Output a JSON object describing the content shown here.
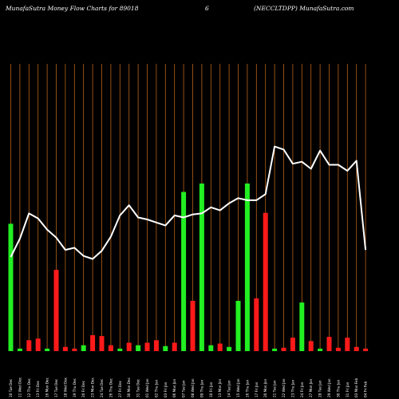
{
  "header": {
    "left": "MunafaSutra  Money Flow  Charts for 89018",
    "middle": "6",
    "right": "(NECCLTDPP) MunafaSutra.com"
  },
  "colors": {
    "background": "#000000",
    "grid": "#b8621b",
    "up": "#22ee22",
    "down": "#ff1a1a",
    "line": "#ffffff"
  },
  "chart_data": {
    "type": "bar",
    "grid": true,
    "title": "MunafaSutra  Money Flow  Charts for 89018",
    "categories": [
      "04 Feb 2025",
      "03 Feb 2025",
      "31 Jan 2025",
      "30 Jan 2025",
      "29 Jan 2025",
      "28 Jan 2025",
      "27 Jan 2025",
      "24 Jan 2025",
      "23 Jan 2025",
      "22 Jan 2025",
      "21 Jan 2025",
      "20 Jan 2025",
      "17 Jan 2025",
      "16 Jan 2025",
      "15 Jan 2025",
      "14 Jan 2025",
      "13 Jan 2025",
      "10 Jan 2025",
      "09 Jan 2025",
      "08 Jan 2025",
      "07 Jan 2025",
      "06 Jan 2025",
      "03 Jan 2025",
      "02 Jan 2025",
      "01 Jan 2025",
      "31 Dec 2024",
      "30 Dec 2024",
      "27 Dec 2024",
      "26 Dec 2024",
      "24 Dec 2024",
      "23 Dec 2024",
      "20 Dec 2024",
      "19 Dec 2024",
      "18 Dec 2024",
      "17 Dec 2024",
      "16 Dec 2024",
      "13 Dec 2024",
      "12 Dec 2024",
      "11 Dec 2024",
      "10 Dec 2024"
    ],
    "x_labels": [
      "04 Fri Feb",
      "03 Mon Feb",
      "31 Fri Jan",
      "30 Thu Jan",
      "29 Wed Jan",
      "28 Tue Jan",
      "27 Mon Jan",
      "24 Fri Jan",
      "23 Thu Jan",
      "22 Wed Jan",
      "21 Tue Jan",
      "20 Mon Jan",
      "17 Fri Jan",
      "16 Thu Jan",
      "15 Wed Jan",
      "14 Tue Jan",
      "13 Mon Jan",
      "10 Fri Jan",
      "09 Thu Jan",
      "08 Wed Jan",
      "07 Tue Jan",
      "06 Mon Jan",
      "03 Fri Jan",
      "02 Thu Jan",
      "01 Wed Jan",
      "31 Tue Dec",
      "30 Mon Dec",
      "27 Fri Dec",
      "26 Thu Dec",
      "24 Tue Dec",
      "23 Mon Dec",
      "20 Fri Dec",
      "19 Thu Dec",
      "18 Wed Dec",
      "17 Tue Dec",
      "16 Mon Dec",
      "13 Fri Dec",
      "12 Thu Dec",
      "11 Wed Dec",
      "10 Tue Dec"
    ],
    "bar_values": [
      3,
      5,
      16,
      4,
      17,
      3,
      12,
      58,
      16,
      4,
      3,
      165,
      63,
      200,
      60,
      5,
      9,
      7,
      200,
      60,
      190,
      10,
      6,
      13,
      10,
      7,
      10,
      3,
      7,
      18,
      19,
      7,
      3,
      5,
      97,
      3,
      15,
      13,
      3,
      152
    ],
    "bar_colors": [
      "down",
      "down",
      "down",
      "down",
      "down",
      "up",
      "down",
      "up",
      "down",
      "down",
      "up",
      "down",
      "down",
      "up",
      "up",
      "up",
      "down",
      "up",
      "up",
      "down",
      "up",
      "down",
      "up",
      "down",
      "down",
      "up",
      "down",
      "up",
      "down",
      "down",
      "down",
      "up",
      "down",
      "down",
      "down",
      "up",
      "down",
      "down",
      "up",
      "up"
    ],
    "bar_ylim": [
      0,
      220
    ],
    "line_values": [
      100,
      188,
      178,
      184,
      184,
      198,
      180,
      187,
      185,
      199,
      202,
      155,
      149,
      149,
      151,
      146,
      139,
      142,
      136,
      135,
      132,
      134,
      124,
      127,
      130,
      132,
      144,
      134,
      113,
      99,
      91,
      94,
      102,
      100,
      112,
      120,
      131,
      136,
      111,
      93
    ],
    "line_ylim": [
      0,
      260
    ]
  }
}
